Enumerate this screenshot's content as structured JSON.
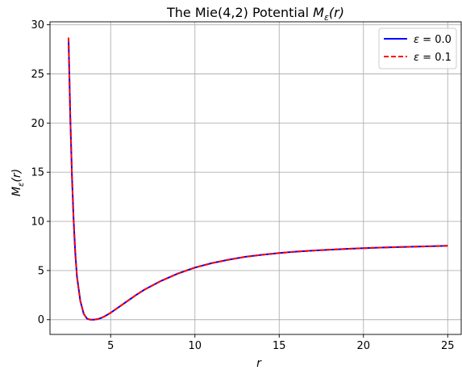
{
  "chart_data": {
    "type": "line",
    "title": "The Mie(4,2) Potential M_ε(r)",
    "title_parts": {
      "prefix": "The Mie(4,2) Potential ",
      "symbol": "M",
      "subscript": "ε",
      "arg": "(r)"
    },
    "xlabel": "r",
    "ylabel": "M_ε(r)",
    "ylabel_parts": {
      "symbol": "M",
      "subscript": "ε",
      "arg": "(r)"
    },
    "xlim": [
      1.4,
      25.8
    ],
    "ylim": [
      -1.5,
      30.3
    ],
    "xticks": [
      5,
      10,
      15,
      20,
      25
    ],
    "yticks": [
      0,
      5,
      10,
      15,
      20,
      25,
      30
    ],
    "grid": true,
    "legend_position": "top-right",
    "x": [
      2.5,
      2.6,
      2.7,
      2.8,
      2.9,
      3.0,
      3.2,
      3.4,
      3.6,
      3.8,
      4.0,
      4.2,
      4.4,
      4.6,
      5.0,
      5.5,
      6.0,
      6.5,
      7.0,
      7.5,
      8.0,
      9.0,
      10.0,
      11.0,
      12.0,
      13.0,
      14.0,
      15.0,
      16.0,
      17.0,
      18.0,
      19.0,
      20.0,
      21.0,
      22.0,
      23.0,
      24.0,
      25.0
    ],
    "series": [
      {
        "name": "ε = 0.0",
        "label_symbol": "ε",
        "label_value": "0.0",
        "color": "#0000ff",
        "linestyle": "solid",
        "values": [
          28.7,
          20.9,
          14.8,
          10.2,
          6.8,
          4.4,
          1.9,
          0.6,
          0.1,
          0.0,
          0.0,
          0.05,
          0.15,
          0.3,
          0.7,
          1.3,
          1.9,
          2.5,
          3.05,
          3.5,
          3.95,
          4.7,
          5.3,
          5.75,
          6.1,
          6.4,
          6.6,
          6.78,
          6.92,
          7.03,
          7.12,
          7.2,
          7.27,
          7.33,
          7.38,
          7.43,
          7.47,
          7.52
        ]
      },
      {
        "name": "ε = 0.1",
        "label_symbol": "ε",
        "label_value": "0.1",
        "color": "#ff0000",
        "linestyle": "dashed",
        "values": [
          28.7,
          20.9,
          14.8,
          10.2,
          6.8,
          4.4,
          1.9,
          0.6,
          0.1,
          0.0,
          0.0,
          0.05,
          0.15,
          0.3,
          0.7,
          1.3,
          1.9,
          2.5,
          3.05,
          3.5,
          3.95,
          4.7,
          5.3,
          5.75,
          6.1,
          6.4,
          6.6,
          6.78,
          6.92,
          7.03,
          7.12,
          7.2,
          7.27,
          7.33,
          7.38,
          7.43,
          7.47,
          7.52
        ]
      }
    ]
  }
}
